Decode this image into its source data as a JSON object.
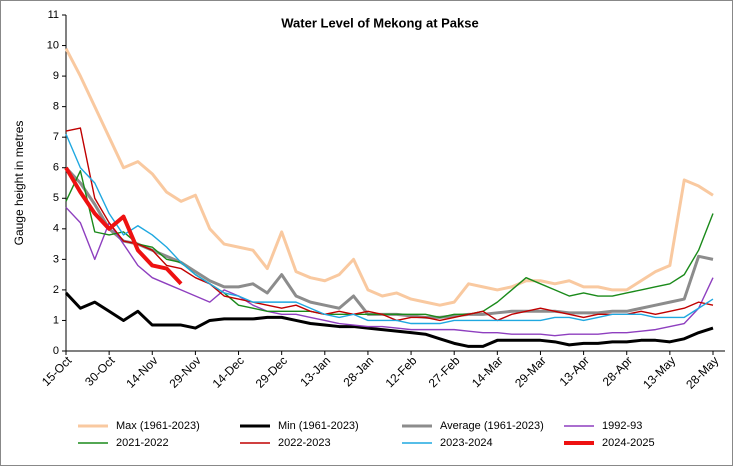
{
  "chart_data": {
    "type": "line",
    "title": "Water Level of Mekong at Pakse",
    "y_label": "Gauge height in metres",
    "categories": [
      "15-Oct",
      null,
      null,
      "30-Oct",
      null,
      null,
      "14-Nov",
      null,
      null,
      "29-Nov",
      null,
      null,
      "14-Dec",
      null,
      null,
      "29-Dec",
      null,
      null,
      "13-Jan",
      null,
      null,
      "28-Jan",
      null,
      null,
      "12-Feb",
      null,
      null,
      "27-Feb",
      null,
      null,
      "14-Mar",
      null,
      null,
      "29-Mar",
      null,
      null,
      "13-Apr",
      null,
      null,
      "28-Apr",
      null,
      null,
      "13-May",
      null,
      null,
      "28-May"
    ],
    "ylim": [
      0,
      11
    ],
    "yticks": [
      0,
      1,
      2,
      3,
      4,
      5,
      6,
      7,
      8,
      9,
      10,
      11
    ],
    "grid": false,
    "legend": "bottom",
    "series": [
      {
        "name": "Max (1961-2023)",
        "color": "#f9c9a0",
        "width": 3,
        "values": [
          9.9,
          9.0,
          8.0,
          7.0,
          6.0,
          6.2,
          5.8,
          5.2,
          4.9,
          5.1,
          4.0,
          3.5,
          3.4,
          3.3,
          2.7,
          3.9,
          2.6,
          2.4,
          2.3,
          2.5,
          3.0,
          2.0,
          1.8,
          1.9,
          1.7,
          1.6,
          1.5,
          1.6,
          2.2,
          2.1,
          2.0,
          2.1,
          2.3,
          2.3,
          2.2,
          2.3,
          2.1,
          2.1,
          2.0,
          2.0,
          2.3,
          2.6,
          2.8,
          5.6,
          5.4,
          5.1
        ]
      },
      {
        "name": "Min (1961-2023)",
        "color": "#000000",
        "width": 3,
        "values": [
          1.9,
          1.4,
          1.6,
          1.3,
          1.0,
          1.3,
          0.85,
          0.85,
          0.85,
          0.75,
          1.0,
          1.05,
          1.05,
          1.05,
          1.1,
          1.1,
          1.0,
          0.9,
          0.85,
          0.8,
          0.8,
          0.75,
          0.7,
          0.65,
          0.6,
          0.55,
          0.4,
          0.25,
          0.15,
          0.15,
          0.35,
          0.35,
          0.35,
          0.35,
          0.3,
          0.2,
          0.25,
          0.25,
          0.3,
          0.3,
          0.35,
          0.35,
          0.3,
          0.4,
          0.6,
          0.75
        ]
      },
      {
        "name": "Average (1961-2023)",
        "color": "#8c8c8c",
        "width": 3,
        "values": [
          6.0,
          5.5,
          4.8,
          4.0,
          3.6,
          3.5,
          3.3,
          3.1,
          2.9,
          2.6,
          2.3,
          2.1,
          2.1,
          2.2,
          1.9,
          2.5,
          1.8,
          1.6,
          1.5,
          1.4,
          1.8,
          1.2,
          1.2,
          1.2,
          1.15,
          1.1,
          1.1,
          1.15,
          1.2,
          1.2,
          1.25,
          1.3,
          1.3,
          1.3,
          1.3,
          1.25,
          1.25,
          1.25,
          1.3,
          1.3,
          1.4,
          1.5,
          1.6,
          1.7,
          3.1,
          3.0
        ]
      },
      {
        "name": "1992-93",
        "color": "#8e3fbf",
        "width": 1.4,
        "values": [
          4.7,
          4.2,
          3.0,
          4.2,
          3.5,
          2.8,
          2.4,
          2.2,
          2.0,
          1.8,
          1.6,
          2.0,
          1.8,
          1.5,
          1.3,
          1.2,
          1.2,
          1.1,
          1.0,
          0.9,
          0.85,
          0.8,
          0.8,
          0.75,
          0.7,
          0.7,
          0.7,
          0.7,
          0.65,
          0.6,
          0.6,
          0.55,
          0.55,
          0.55,
          0.5,
          0.55,
          0.55,
          0.55,
          0.6,
          0.6,
          0.65,
          0.7,
          0.8,
          0.9,
          1.4,
          2.4
        ]
      },
      {
        "name": "2021-2022",
        "color": "#1a8a1a",
        "width": 1.4,
        "values": [
          4.9,
          5.9,
          3.9,
          3.8,
          3.9,
          3.5,
          3.4,
          3.0,
          2.9,
          2.5,
          2.2,
          1.9,
          1.5,
          1.4,
          1.3,
          1.3,
          1.3,
          1.3,
          1.2,
          1.2,
          1.2,
          1.2,
          1.2,
          1.2,
          1.2,
          1.2,
          1.1,
          1.2,
          1.2,
          1.3,
          1.6,
          2.0,
          2.4,
          2.2,
          2.0,
          1.8,
          1.9,
          1.8,
          1.8,
          1.9,
          2.0,
          2.1,
          2.2,
          2.5,
          3.3,
          4.5
        ]
      },
      {
        "name": "2022-2023",
        "color": "#c00000",
        "width": 1.4,
        "values": [
          7.2,
          7.3,
          5.0,
          4.2,
          3.6,
          3.5,
          3.3,
          2.8,
          2.7,
          2.4,
          2.2,
          1.8,
          1.7,
          1.6,
          1.5,
          1.4,
          1.5,
          1.3,
          1.2,
          1.3,
          1.2,
          1.3,
          1.2,
          1.0,
          1.1,
          1.1,
          1.0,
          1.1,
          1.2,
          1.3,
          1.0,
          1.2,
          1.3,
          1.4,
          1.3,
          1.2,
          1.1,
          1.2,
          1.2,
          1.2,
          1.3,
          1.2,
          1.3,
          1.4,
          1.6,
          1.5
        ]
      },
      {
        "name": "2023-2024",
        "color": "#1fa8e0",
        "width": 1.4,
        "values": [
          7.1,
          6.0,
          5.5,
          4.5,
          3.8,
          4.1,
          3.8,
          3.4,
          2.9,
          2.5,
          2.2,
          1.9,
          1.8,
          1.6,
          1.6,
          1.6,
          1.6,
          1.4,
          1.2,
          1.1,
          1.2,
          1.0,
          1.0,
          1.0,
          0.9,
          0.9,
          0.9,
          1.0,
          1.0,
          1.0,
          1.0,
          1.0,
          1.0,
          1.0,
          1.1,
          1.1,
          1.0,
          1.1,
          1.2,
          1.2,
          1.2,
          1.1,
          1.1,
          1.1,
          1.4,
          1.7
        ]
      },
      {
        "name": "2024-2025",
        "color": "#ee1111",
        "width": 4,
        "values": [
          6.0,
          5.2,
          4.5,
          4.0,
          4.4,
          3.3,
          2.8,
          2.7,
          2.2,
          null,
          null,
          null,
          null,
          null,
          null,
          null,
          null,
          null,
          null,
          null,
          null,
          null,
          null,
          null,
          null,
          null,
          null,
          null,
          null,
          null,
          null,
          null,
          null,
          null,
          null,
          null,
          null,
          null,
          null,
          null,
          null,
          null,
          null,
          null,
          null,
          null
        ]
      }
    ]
  }
}
